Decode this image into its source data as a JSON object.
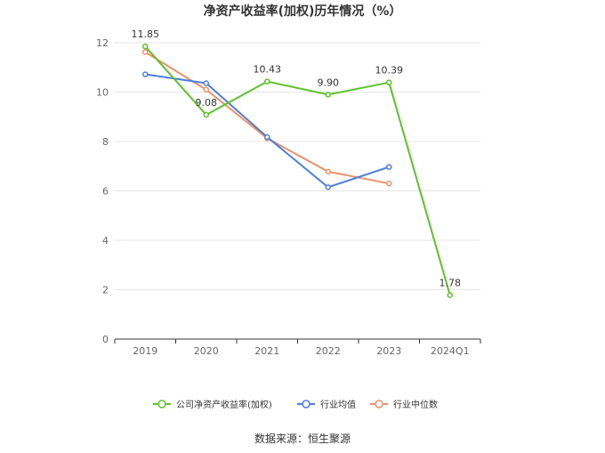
{
  "chart_data": {
    "type": "line",
    "title": "净资产收益率(加权)历年情况（%）",
    "categories": [
      "2019",
      "2020",
      "2021",
      "2022",
      "2023",
      "2024Q1"
    ],
    "ylim": [
      0,
      12
    ],
    "yticks": [
      0,
      2,
      4,
      6,
      8,
      10,
      12
    ],
    "grid": true,
    "legend_position": "bottom",
    "series": [
      {
        "name": "公司净资产收益率(加权)",
        "color": "#5ec229",
        "values": [
          11.85,
          9.08,
          10.43,
          9.9,
          10.39,
          1.78
        ],
        "labels": [
          "11.85",
          "9.08",
          "10.43",
          "9.90",
          "10.39",
          "1.78"
        ]
      },
      {
        "name": "行业均值",
        "color": "#4a7ee0",
        "values": [
          10.72,
          10.36,
          8.18,
          6.15,
          6.97,
          null
        ]
      },
      {
        "name": "行业中位数",
        "color": "#f0906a",
        "values": [
          11.62,
          10.1,
          8.13,
          6.78,
          6.3,
          null
        ]
      }
    ]
  },
  "source_text": "数据来源：恒生聚源"
}
